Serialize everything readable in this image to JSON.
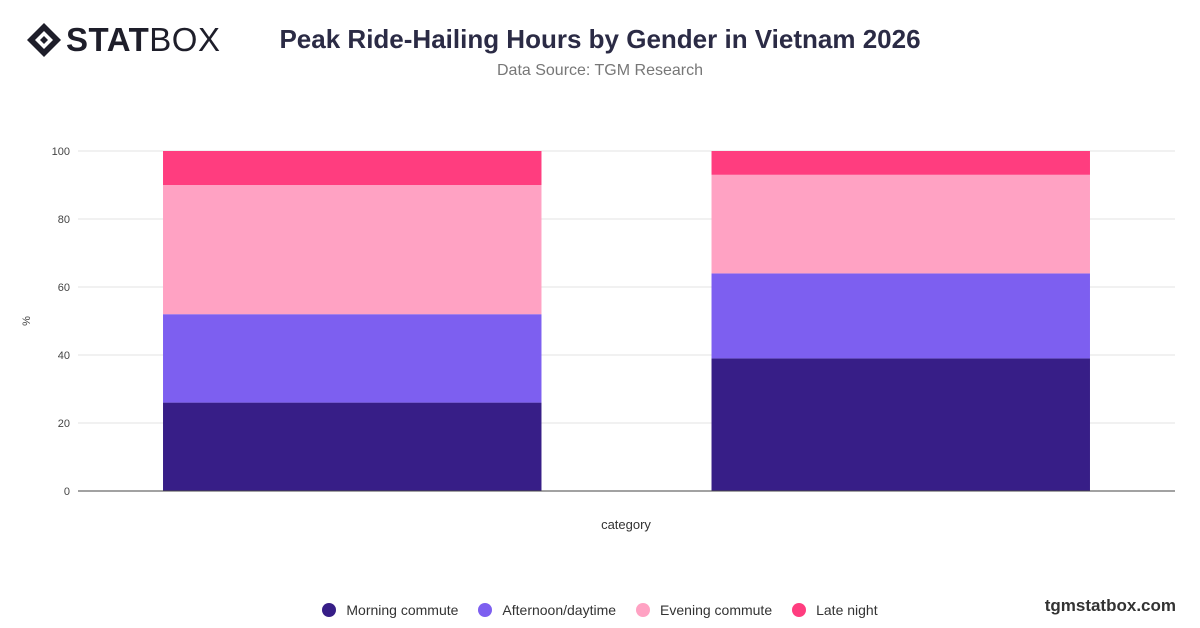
{
  "brand": {
    "logo_bold": "STAT",
    "logo_light": "BOX",
    "footer": "tgmstatbox.com"
  },
  "chart_data": {
    "type": "bar",
    "stacked": true,
    "title": "Peak Ride-Hailing Hours by Gender in Vietnam 2026",
    "subtitle": "Data Source: TGM Research",
    "xlabel": "category",
    "ylabel": "%",
    "ylim": [
      0,
      100
    ],
    "yticks": [
      0,
      20,
      40,
      60,
      80,
      100
    ],
    "grid": true,
    "legend_position": "bottom",
    "categories": [
      "",
      ""
    ],
    "series": [
      {
        "name": "Morning commute",
        "color": "#371e87",
        "values": [
          26,
          39
        ]
      },
      {
        "name": "Afternoon/daytime",
        "color": "#7d5ff0",
        "values": [
          26,
          25
        ]
      },
      {
        "name": "Evening commute",
        "color": "#ffa2c3",
        "values": [
          38,
          29
        ]
      },
      {
        "name": "Late night",
        "color": "#ff3d7f",
        "values": [
          10,
          7
        ]
      }
    ]
  }
}
